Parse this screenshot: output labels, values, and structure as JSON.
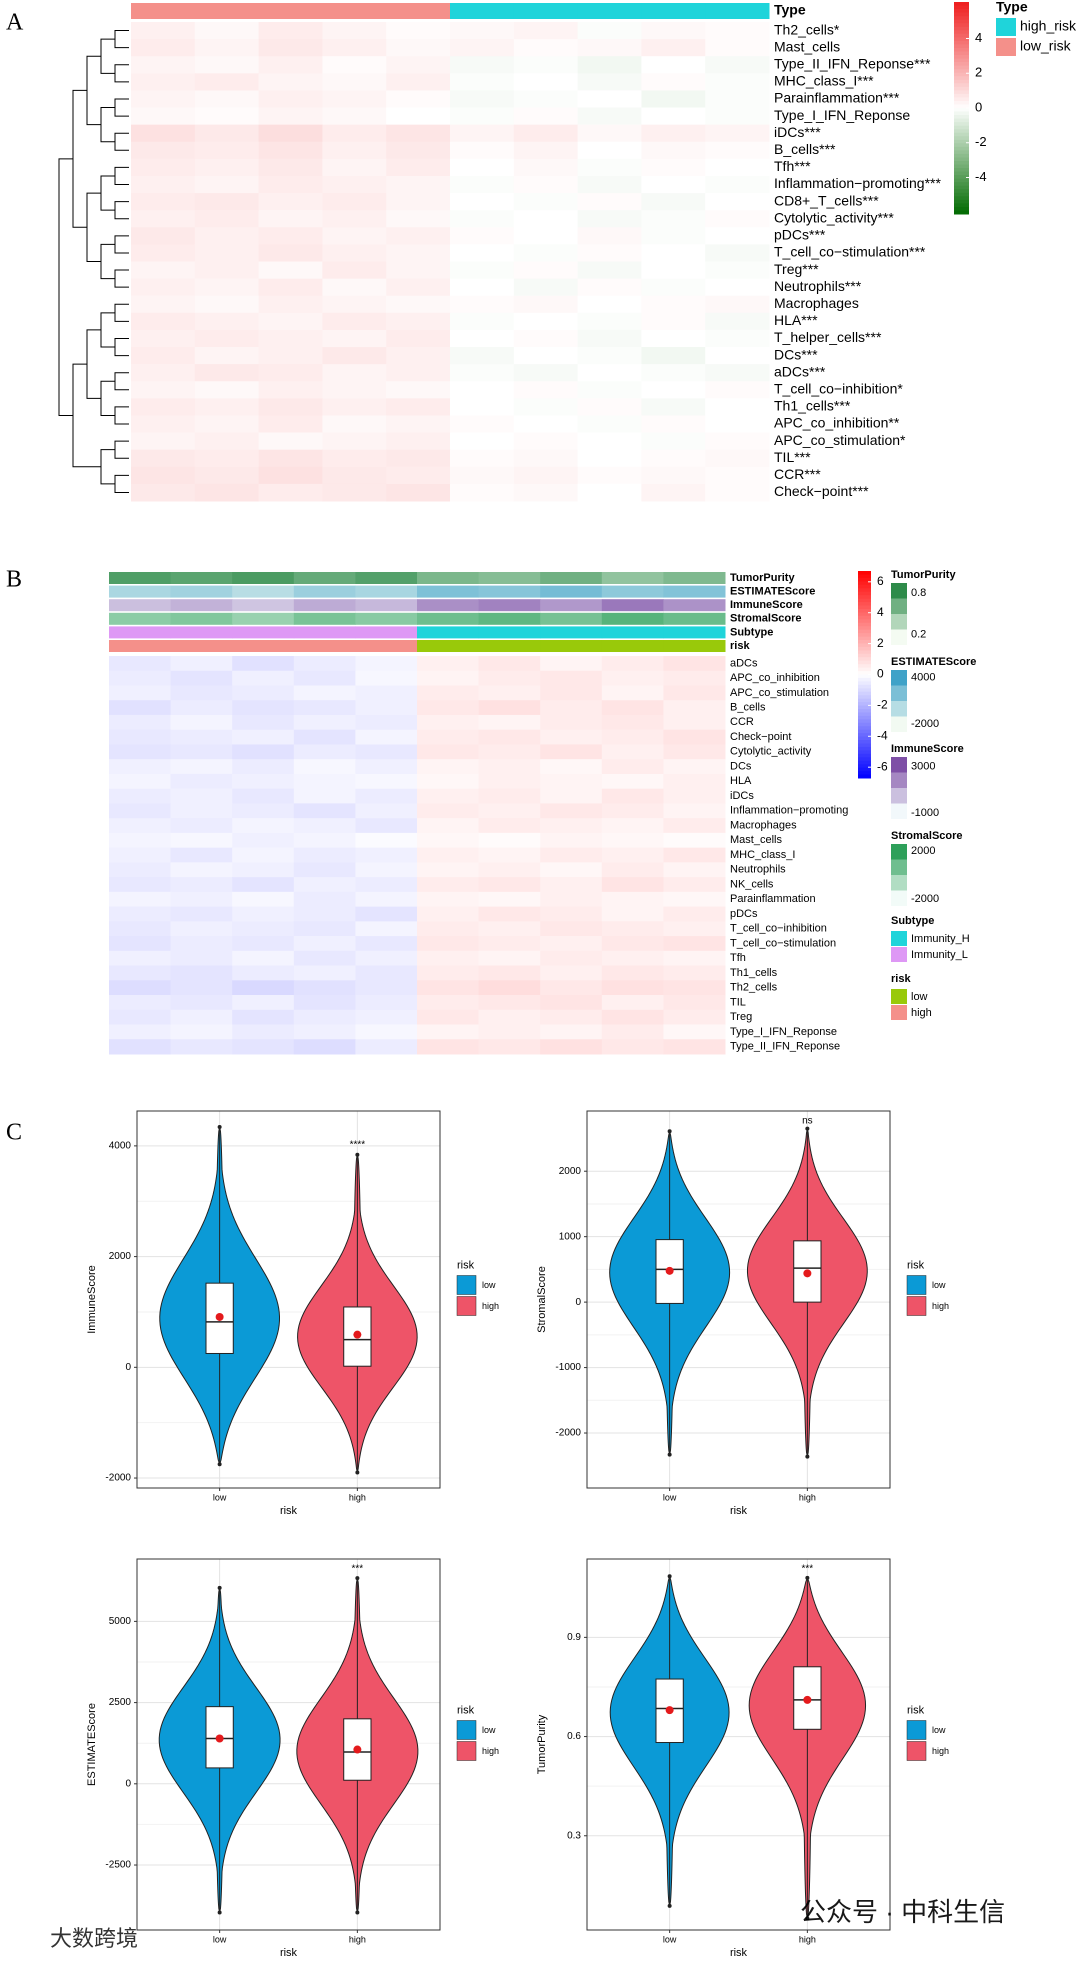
{
  "chart_data": [
    {
      "type": "heatmap",
      "panel": "A",
      "rows": [
        "Th2_cells*",
        "Mast_cells",
        "Type_II_IFN_Reponse***",
        "MHC_class_I***",
        "Parainflammation***",
        "Type_I_IFN_Reponse",
        "iDCs***",
        "B_cells***",
        "Tfh***",
        "Inflammation−promoting***",
        "CD8+_T_cells***",
        "Cytolytic_activity***",
        "pDCs***",
        "T_cell_co−stimulation***",
        "Treg***",
        "Neutrophils***",
        "Macrophages",
        "HLA***",
        "T_helper_cells***",
        "DCs***",
        "aDCs***",
        "T_cell_co−inhibition*",
        "Th1_cells***",
        "APC_co_inhibition**",
        "APC_co_stimulation*",
        "TIL***",
        "CCR***",
        "Check−point***"
      ],
      "values": [
        [
          0.4,
          0.2,
          0.5,
          0.3,
          0.1,
          0.2,
          0.3,
          -0.1,
          0.2,
          0.1
        ],
        [
          0.5,
          0.3,
          0.6,
          0.4,
          0.2,
          0.3,
          0.1,
          0.2,
          0.4,
          0.1
        ],
        [
          0.3,
          0.2,
          0.4,
          0.1,
          0.3,
          -0.2,
          -0.1,
          -0.3,
          0.0,
          -0.2
        ],
        [
          0.4,
          0.5,
          0.3,
          0.2,
          0.4,
          -0.1,
          0.0,
          -0.2,
          0.1,
          -0.1
        ],
        [
          0.3,
          0.2,
          0.4,
          0.3,
          0.1,
          -0.2,
          -0.1,
          0.0,
          -0.3,
          -0.1
        ],
        [
          0.2,
          0.1,
          0.3,
          0.2,
          0.0,
          -0.1,
          0.1,
          -0.2,
          0.0,
          -0.1
        ],
        [
          0.8,
          0.6,
          0.9,
          0.5,
          0.7,
          0.3,
          0.5,
          0.2,
          0.4,
          0.3
        ],
        [
          0.6,
          0.5,
          0.7,
          0.4,
          0.6,
          0.1,
          0.3,
          0.0,
          0.2,
          0.1
        ],
        [
          0.5,
          0.4,
          0.6,
          0.3,
          0.5,
          0.0,
          0.2,
          -0.1,
          0.1,
          0.0
        ],
        [
          0.4,
          0.3,
          0.5,
          0.4,
          0.3,
          -0.1,
          0.1,
          -0.2,
          0.0,
          -0.1
        ],
        [
          0.5,
          0.6,
          0.4,
          0.5,
          0.3,
          0.0,
          -0.1,
          0.1,
          -0.2,
          0.0
        ],
        [
          0.4,
          0.5,
          0.3,
          0.4,
          0.2,
          -0.1,
          0.0,
          -0.2,
          -0.1,
          0.1
        ],
        [
          0.6,
          0.4,
          0.5,
          0.3,
          0.4,
          0.1,
          0.0,
          0.2,
          -0.1,
          0.0
        ],
        [
          0.5,
          0.4,
          0.6,
          0.4,
          0.3,
          0.0,
          -0.1,
          0.1,
          0.0,
          -0.2
        ],
        [
          0.3,
          0.4,
          0.2,
          0.5,
          0.3,
          -0.1,
          0.1,
          -0.2,
          0.0,
          -0.1
        ],
        [
          0.4,
          0.3,
          0.5,
          0.2,
          0.4,
          0.0,
          -0.2,
          0.1,
          -0.1,
          0.0
        ],
        [
          0.3,
          0.2,
          0.4,
          0.3,
          0.2,
          0.1,
          0.2,
          0.0,
          0.1,
          0.2
        ],
        [
          0.5,
          0.4,
          0.3,
          0.5,
          0.4,
          -0.1,
          0.0,
          -0.1,
          0.1,
          -0.2
        ],
        [
          0.4,
          0.5,
          0.4,
          0.3,
          0.5,
          0.0,
          0.1,
          -0.2,
          0.0,
          -0.1
        ],
        [
          0.5,
          0.3,
          0.4,
          0.6,
          0.4,
          -0.2,
          0.0,
          -0.1,
          -0.3,
          0.0
        ],
        [
          0.4,
          0.6,
          0.5,
          0.3,
          0.4,
          -0.1,
          -0.2,
          0.0,
          -0.1,
          -0.2
        ],
        [
          0.3,
          0.2,
          0.4,
          0.3,
          0.2,
          0.0,
          0.1,
          -0.1,
          0.0,
          0.1
        ],
        [
          0.5,
          0.4,
          0.6,
          0.4,
          0.5,
          0.0,
          -0.1,
          0.1,
          -0.2,
          0.0
        ],
        [
          0.4,
          0.3,
          0.5,
          0.2,
          0.3,
          0.1,
          0.0,
          -0.1,
          0.1,
          0.0
        ],
        [
          0.3,
          0.4,
          0.2,
          0.3,
          0.4,
          0.0,
          0.1,
          0.0,
          -0.1,
          0.1
        ],
        [
          0.6,
          0.5,
          0.7,
          0.5,
          0.6,
          0.1,
          0.2,
          0.0,
          0.1,
          0.2
        ],
        [
          0.7,
          0.6,
          0.8,
          0.6,
          0.5,
          0.2,
          0.3,
          0.1,
          0.2,
          0.1
        ],
        [
          0.6,
          0.7,
          0.5,
          0.6,
          0.7,
          0.1,
          0.2,
          0.0,
          0.3,
          0.1
        ]
      ],
      "colorscale": [
        "#006a00",
        "#ffffff",
        "#ee1c1c"
      ],
      "colorbar": {
        "lim": [
          -6.1,
          6.1
        ],
        "ticks": [
          4,
          2,
          0,
          -2,
          -4
        ]
      },
      "annotation": {
        "name": "Type",
        "values": [
          "low_risk",
          "low_risk",
          "low_risk",
          "low_risk",
          "low_risk",
          "high_risk",
          "high_risk",
          "high_risk",
          "high_risk",
          "high_risk"
        ],
        "items": [
          {
            "name": "high_risk",
            "color": "#1fd4da"
          },
          {
            "name": "low_risk",
            "color": "#f4908a"
          }
        ]
      }
    },
    {
      "type": "heatmap",
      "panel": "B",
      "rows": [
        "aDCs",
        "APC_co_inhibition",
        "APC_co_stimulation",
        "B_cells",
        "CCR",
        "Check−point",
        "Cytolytic_activity",
        "DCs",
        "HLA",
        "iDCs",
        "Inflammation−promoting",
        "Macrophages",
        "Mast_cells",
        "MHC_class_I",
        "Neutrophils",
        "NK_cells",
        "Parainflammation",
        "pDCs",
        "T_cell_co−inhibition",
        "T_cell_co−stimulation",
        "Tfh",
        "Th1_cells",
        "Th2_cells",
        "TIL",
        "Treg",
        "Type_I_IFN_Reponse",
        "Type_II_IFN_Reponse"
      ],
      "values": [
        [
          -0.6,
          -0.4,
          -0.8,
          -0.5,
          -0.3,
          0.4,
          0.6,
          0.3,
          0.5,
          0.7
        ],
        [
          -0.5,
          -0.7,
          -0.4,
          -0.6,
          -0.2,
          0.3,
          0.5,
          0.6,
          0.4,
          0.5
        ],
        [
          -0.4,
          -0.6,
          -0.5,
          -0.3,
          -0.4,
          0.5,
          0.4,
          0.6,
          0.3,
          0.6
        ],
        [
          -0.8,
          -0.5,
          -0.7,
          -0.6,
          -0.4,
          0.6,
          0.8,
          0.5,
          0.7,
          0.4
        ],
        [
          -0.5,
          -0.3,
          -0.6,
          -0.4,
          -0.5,
          0.4,
          0.3,
          0.5,
          0.6,
          0.4
        ],
        [
          -0.6,
          -0.5,
          -0.4,
          -0.7,
          -0.3,
          0.5,
          0.6,
          0.4,
          0.5,
          0.7
        ],
        [
          -0.7,
          -0.6,
          -0.8,
          -0.5,
          -0.6,
          0.6,
          0.5,
          0.7,
          0.4,
          0.6
        ],
        [
          -0.4,
          -0.3,
          -0.5,
          -0.2,
          -0.4,
          0.3,
          0.4,
          0.2,
          0.5,
          0.3
        ],
        [
          -0.3,
          -0.5,
          -0.4,
          -0.3,
          -0.2,
          0.2,
          0.4,
          0.3,
          0.2,
          0.4
        ],
        [
          -0.5,
          -0.4,
          -0.6,
          -0.3,
          -0.5,
          0.4,
          0.5,
          0.3,
          0.6,
          0.4
        ],
        [
          -0.6,
          -0.4,
          -0.5,
          -0.7,
          -0.4,
          0.5,
          0.4,
          0.6,
          0.5,
          0.3
        ],
        [
          -0.4,
          -0.5,
          -0.3,
          -0.4,
          -0.6,
          0.3,
          0.5,
          0.4,
          0.3,
          0.5
        ],
        [
          -0.3,
          -0.2,
          -0.4,
          -0.3,
          -0.1,
          0.2,
          0.1,
          0.3,
          0.2,
          0.1
        ],
        [
          -0.4,
          -0.6,
          -0.3,
          -0.5,
          -0.4,
          0.4,
          0.3,
          0.5,
          0.4,
          0.6
        ],
        [
          -0.5,
          -0.3,
          -0.4,
          -0.6,
          -0.3,
          0.3,
          0.4,
          0.2,
          0.5,
          0.3
        ],
        [
          -0.6,
          -0.5,
          -0.7,
          -0.4,
          -0.5,
          0.5,
          0.6,
          0.4,
          0.7,
          0.5
        ],
        [
          -0.3,
          -0.4,
          -0.2,
          -0.5,
          -0.3,
          0.3,
          0.2,
          0.4,
          0.3,
          0.2
        ],
        [
          -0.5,
          -0.6,
          -0.4,
          -0.5,
          -0.7,
          0.4,
          0.6,
          0.5,
          0.3,
          0.5
        ],
        [
          -0.6,
          -0.4,
          -0.5,
          -0.6,
          -0.3,
          0.5,
          0.4,
          0.6,
          0.5,
          0.4
        ],
        [
          -0.7,
          -0.5,
          -0.6,
          -0.4,
          -0.6,
          0.6,
          0.5,
          0.4,
          0.6,
          0.7
        ],
        [
          -0.4,
          -0.5,
          -0.3,
          -0.6,
          -0.4,
          0.4,
          0.3,
          0.5,
          0.4,
          0.3
        ],
        [
          -0.6,
          -0.7,
          -0.5,
          -0.4,
          -0.6,
          0.5,
          0.6,
          0.4,
          0.6,
          0.5
        ],
        [
          -0.9,
          -0.7,
          -1.0,
          -0.8,
          -0.6,
          0.7,
          0.9,
          0.6,
          0.8,
          0.7
        ],
        [
          -0.5,
          -0.6,
          -0.4,
          -0.7,
          -0.5,
          0.5,
          0.6,
          0.7,
          0.4,
          0.6
        ],
        [
          -0.6,
          -0.4,
          -0.7,
          -0.5,
          -0.4,
          0.6,
          0.4,
          0.5,
          0.7,
          0.5
        ],
        [
          -0.4,
          -0.3,
          -0.5,
          -0.4,
          -0.2,
          0.3,
          0.4,
          0.3,
          0.5,
          0.2
        ],
        [
          -0.8,
          -0.6,
          -0.7,
          -0.9,
          -0.5,
          0.7,
          0.6,
          0.8,
          0.6,
          0.7
        ]
      ],
      "colorscale": [
        "#0000ff",
        "#ffffff",
        "#ff0000"
      ],
      "colorbar": {
        "lim": [
          -6.7,
          6.7
        ],
        "ticks": [
          6,
          4,
          2,
          0,
          -2,
          -4,
          -6
        ]
      },
      "annotations": [
        {
          "name": "TumorPurity",
          "values": [
            0.8,
            0.75,
            0.82,
            0.7,
            0.78,
            0.6,
            0.55,
            0.65,
            0.5,
            0.58
          ],
          "lim": [
            0.05,
            0.95
          ],
          "colors": [
            "#f4fbf2",
            "#2e8b4a"
          ],
          "ticks": [
            0.8,
            0.2
          ]
        },
        {
          "name": "ESTIMATEScore",
          "values": [
            200,
            600,
            -400,
            900,
            300,
            2200,
            1800,
            2600,
            1500,
            2000
          ],
          "lim": [
            -3000,
            5000
          ],
          "colors": [
            "#f2faf2",
            "#3fa2c8"
          ],
          "ticks": [
            4000,
            -2000
          ]
        },
        {
          "name": "ImmuneScore",
          "values": [
            300,
            700,
            100,
            900,
            500,
            1800,
            2200,
            1500,
            2500,
            1700
          ],
          "lim": [
            -1500,
            3800
          ],
          "colors": [
            "#f2f8fb",
            "#7e4fa6"
          ],
          "ticks": [
            3000,
            -1000
          ]
        },
        {
          "name": "StromalScore",
          "values": [
            100,
            400,
            -200,
            600,
            200,
            900,
            1300,
            700,
            1500,
            1000
          ],
          "lim": [
            -2600,
            2600
          ],
          "colors": [
            "#f2fbf8",
            "#2ea05a"
          ],
          "ticks": [
            2000,
            -2000
          ]
        }
      ],
      "cat_annotations": [
        {
          "name": "Subtype",
          "values": [
            "Immunity_L",
            "Immunity_L",
            "Immunity_L",
            "Immunity_L",
            "Immunity_L",
            "Immunity_H",
            "Immunity_H",
            "Immunity_H",
            "Immunity_H",
            "Immunity_H"
          ],
          "items": [
            {
              "name": "Immunity_H",
              "color": "#1fd4da"
            },
            {
              "name": "Immunity_L",
              "color": "#de98f5"
            }
          ]
        },
        {
          "name": "risk",
          "values": [
            "high",
            "high",
            "high",
            "high",
            "high",
            "low",
            "low",
            "low",
            "low",
            "low"
          ],
          "items": [
            {
              "name": "low",
              "color": "#99c90a"
            },
            {
              "name": "high",
              "color": "#f4908a"
            }
          ]
        }
      ]
    },
    {
      "type": "violin",
      "panel": "C",
      "y_label": "ImmuneScore",
      "x_label": "risk",
      "legend_title": "risk",
      "categories": [
        "low",
        "high"
      ],
      "colors": [
        "#0b9ad6",
        "#ee5468"
      ],
      "annotation": "****",
      "ylim": [
        -2180,
        4630
      ],
      "yticks": [
        -2000,
        0,
        2000,
        4000
      ],
      "stats": [
        {
          "min": -1750,
          "q1": 250,
          "median": 820,
          "q3": 1520,
          "max": 4340,
          "mean": 910
        },
        {
          "min": -1900,
          "q1": 20,
          "median": 500,
          "q3": 1090,
          "max": 3840,
          "mean": 590
        }
      ]
    },
    {
      "type": "violin",
      "y_label": "StromalScore",
      "x_label": "risk",
      "legend_title": "risk",
      "categories": [
        "low",
        "high"
      ],
      "colors": [
        "#0b9ad6",
        "#ee5468"
      ],
      "annotation": "ns",
      "ylim": [
        -2840,
        2920
      ],
      "yticks": [
        -2000,
        -1000,
        0,
        1000,
        2000
      ],
      "stats": [
        {
          "min": -2330,
          "q1": -20,
          "median": 500,
          "q3": 955,
          "max": 2610,
          "mean": 478
        },
        {
          "min": -2360,
          "q1": 0,
          "median": 520,
          "q3": 936,
          "max": 2650,
          "mean": 440
        }
      ]
    },
    {
      "type": "violin",
      "y_label": "ESTIMATEScore",
      "x_label": "risk",
      "legend_title": "risk",
      "categories": [
        "low",
        "high"
      ],
      "colors": [
        "#0b9ad6",
        "#ee5468"
      ],
      "annotation": "***",
      "ylim": [
        -4500,
        6920
      ],
      "yticks": [
        -2500,
        0,
        2500,
        5000
      ],
      "stats": [
        {
          "min": -3960,
          "q1": 490,
          "median": 1395,
          "q3": 2375,
          "max": 6030,
          "mean": 1395
        },
        {
          "min": -3960,
          "q1": 110,
          "median": 980,
          "q3": 2000,
          "max": 6330,
          "mean": 1055
        }
      ]
    },
    {
      "type": "violin",
      "y_label": "TumorPurity",
      "x_label": "risk",
      "legend_title": "risk",
      "categories": [
        "low",
        "high"
      ],
      "colors": [
        "#0b9ad6",
        "#ee5468"
      ],
      "annotation": "***",
      "ylim": [
        0.015,
        1.137
      ],
      "yticks": [
        0.3,
        0.6,
        0.9
      ],
      "stats": [
        {
          "min": 0.088,
          "q1": 0.582,
          "median": 0.685,
          "q3": 0.774,
          "max": 1.085,
          "mean": 0.68
        },
        {
          "min": 0.05,
          "q1": 0.622,
          "median": 0.711,
          "q3": 0.811,
          "max": 1.08,
          "mean": 0.711
        }
      ]
    }
  ],
  "watermarks": [
    "公众号 · 中科生信",
    "大数跨境"
  ]
}
